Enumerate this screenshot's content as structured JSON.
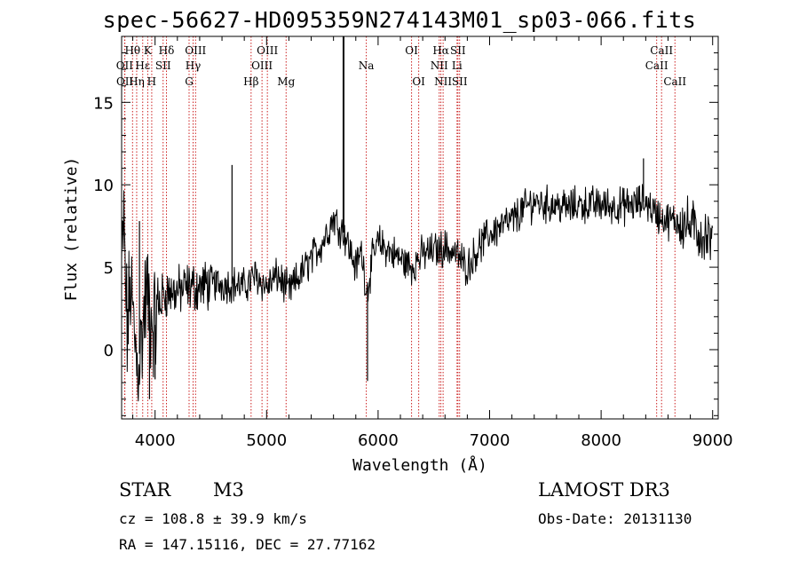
{
  "chart_data": {
    "type": "line",
    "title": "spec-56627-HD095359N274143M01_sp03-066.fits",
    "xlabel": "Wavelength (Å)",
    "ylabel": "Flux (relative)",
    "xlim": [
      3700,
      9050
    ],
    "ylim": [
      -4.2,
      19.0
    ],
    "xticks": [
      4000,
      5000,
      6000,
      7000,
      8000,
      9000
    ],
    "yticks": [
      0,
      5,
      10,
      15
    ],
    "spectrum_anchors": [
      [
        3700,
        5.0
      ],
      [
        3720,
        7.5
      ],
      [
        3750,
        1.0
      ],
      [
        3780,
        4.0
      ],
      [
        3800,
        2.0
      ],
      [
        3840,
        -1.0
      ],
      [
        3880,
        0.5
      ],
      [
        3920,
        3.5
      ],
      [
        3960,
        2.0
      ],
      [
        4000,
        1.5
      ],
      [
        4050,
        3.0
      ],
      [
        4100,
        3.5
      ],
      [
        4200,
        3.5
      ],
      [
        4300,
        3.8
      ],
      [
        4400,
        3.8
      ],
      [
        4500,
        4.0
      ],
      [
        4600,
        4.0
      ],
      [
        4700,
        4.0
      ],
      [
        4800,
        3.8
      ],
      [
        4900,
        4.5
      ],
      [
        5000,
        3.8
      ],
      [
        5100,
        4.5
      ],
      [
        5200,
        3.5
      ],
      [
        5300,
        4.5
      ],
      [
        5400,
        5.5
      ],
      [
        5500,
        6.5
      ],
      [
        5600,
        8.0
      ],
      [
        5650,
        7.5
      ],
      [
        5700,
        7.0
      ],
      [
        5800,
        5.0
      ],
      [
        5850,
        6.0
      ],
      [
        5900,
        3.5
      ],
      [
        5950,
        5.5
      ],
      [
        6000,
        6.5
      ],
      [
        6100,
        6.0
      ],
      [
        6200,
        5.5
      ],
      [
        6300,
        5.0
      ],
      [
        6400,
        5.8
      ],
      [
        6500,
        6.0
      ],
      [
        6600,
        6.2
      ],
      [
        6700,
        5.8
      ],
      [
        6800,
        5.0
      ],
      [
        6900,
        6.2
      ],
      [
        7000,
        7.0
      ],
      [
        7100,
        7.5
      ],
      [
        7200,
        7.8
      ],
      [
        7300,
        8.5
      ],
      [
        7400,
        9.0
      ],
      [
        7500,
        8.8
      ],
      [
        7600,
        8.8
      ],
      [
        7700,
        8.6
      ],
      [
        7800,
        8.8
      ],
      [
        7900,
        8.8
      ],
      [
        8000,
        8.8
      ],
      [
        8100,
        8.7
      ],
      [
        8200,
        8.7
      ],
      [
        8300,
        8.8
      ],
      [
        8400,
        9.0
      ],
      [
        8500,
        8.2
      ],
      [
        8600,
        7.8
      ],
      [
        8700,
        7.8
      ],
      [
        8800,
        7.5
      ],
      [
        8900,
        7.0
      ],
      [
        9000,
        6.5
      ]
    ],
    "noise_amplitude": 0.9,
    "spikes": [
      {
        "x": 5690,
        "y": 19.0
      },
      {
        "x": 4690,
        "y": 11.2
      },
      {
        "x": 8380,
        "y": 11.6
      },
      {
        "x": 3860,
        "y": 7.8
      },
      {
        "x": 5905,
        "y": -1.9
      },
      {
        "x": 3950,
        "y": -3.0
      },
      {
        "x": 4000,
        "y": -1.8
      }
    ],
    "line_markers": [
      {
        "label": "Hθ",
        "x": 3798,
        "row": 1
      },
      {
        "label": "OII",
        "x": 3727,
        "row": 2
      },
      {
        "label": "OII",
        "x": 3729,
        "row": 3
      },
      {
        "label": "Hε",
        "x": 3889,
        "row": 2
      },
      {
        "label": "Hη",
        "x": 3835,
        "row": 3
      },
      {
        "label": "K",
        "x": 3934,
        "row": 1
      },
      {
        "label": "H",
        "x": 3970,
        "row": 3
      },
      {
        "label": "Hδ",
        "x": 4102,
        "row": 1
      },
      {
        "label": "SII",
        "x": 4072,
        "row": 2
      },
      {
        "label": "OIII",
        "x": 4363,
        "row": 1
      },
      {
        "label": "Hγ",
        "x": 4341,
        "row": 2
      },
      {
        "label": "G",
        "x": 4305,
        "row": 3
      },
      {
        "label": "Hβ",
        "x": 4861,
        "row": 3
      },
      {
        "label": "OIII",
        "x": 5007,
        "row": 1
      },
      {
        "label": "OIII",
        "x": 4959,
        "row": 2
      },
      {
        "label": "Mg",
        "x": 5175,
        "row": 3
      },
      {
        "label": "Na",
        "x": 5894,
        "row": 2
      },
      {
        "label": "OI",
        "x": 6300,
        "row": 1
      },
      {
        "label": "OI",
        "x": 6364,
        "row": 3
      },
      {
        "label": "Hα",
        "x": 6563,
        "row": 1
      },
      {
        "label": "NII",
        "x": 6548,
        "row": 2
      },
      {
        "label": "NII",
        "x": 6583,
        "row": 3
      },
      {
        "label": "SII",
        "x": 6716,
        "row": 1
      },
      {
        "label": "Li",
        "x": 6708,
        "row": 2
      },
      {
        "label": "SII",
        "x": 6731,
        "row": 3
      },
      {
        "label": "CaII",
        "x": 8542,
        "row": 1
      },
      {
        "label": "CaII",
        "x": 8498,
        "row": 2
      },
      {
        "label": "CaII",
        "x": 8662,
        "row": 3
      }
    ],
    "marker_color": "#cc2222"
  },
  "info": {
    "object_class": "STAR",
    "subclass": "M3",
    "survey": "LAMOST DR3",
    "cz": "cz = 108.8 ± 39.9 km/s",
    "obs_date": "Obs-Date: 20131130",
    "coords": "RA = 147.15116, DEC =  27.77162"
  }
}
